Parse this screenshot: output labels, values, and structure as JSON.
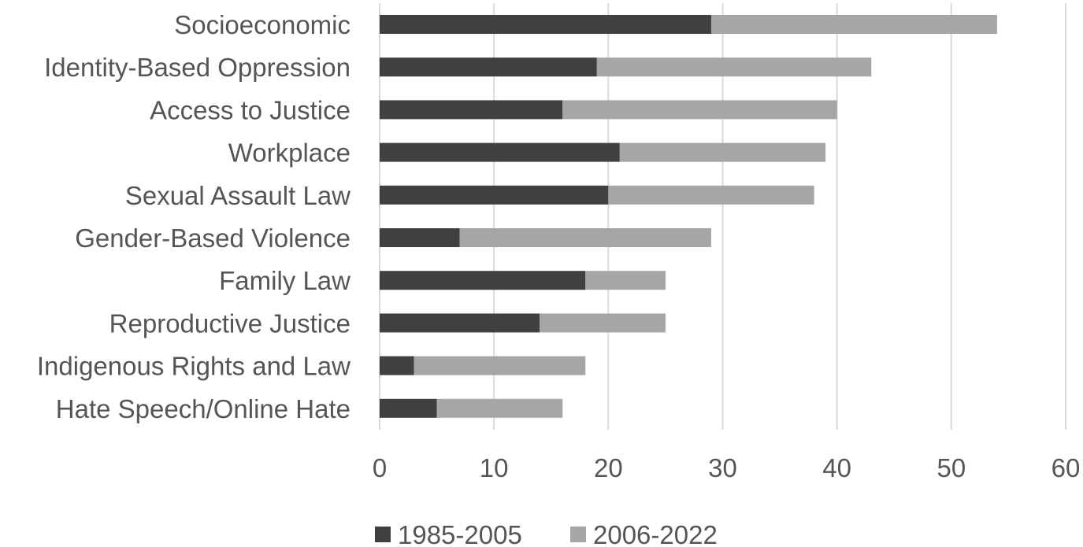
{
  "chart_data": {
    "type": "bar",
    "orientation": "horizontal",
    "stacked": true,
    "categories": [
      "Socioeconomic",
      "Identity-Based Oppression",
      "Access to Justice",
      "Workplace",
      "Sexual Assault Law",
      "Gender-Based Violence",
      "Family Law",
      "Reproductive Justice",
      "Indigenous Rights and Law",
      "Hate Speech/Online Hate"
    ],
    "series": [
      {
        "name": "1985-2005",
        "color": "#404040",
        "values": [
          29,
          19,
          16,
          21,
          20,
          7,
          18,
          14,
          3,
          5
        ]
      },
      {
        "name": "2006-2022",
        "color": "#a6a6a6",
        "values": [
          25,
          24,
          24,
          18,
          18,
          22,
          7,
          11,
          15,
          11
        ]
      }
    ],
    "xlim": [
      0,
      60
    ],
    "xticks": [
      "0",
      "10",
      "20",
      "30",
      "40",
      "50",
      "60"
    ],
    "xlabel": "",
    "ylabel": "",
    "title": "",
    "grid": "vertical",
    "legend": "bottom"
  }
}
